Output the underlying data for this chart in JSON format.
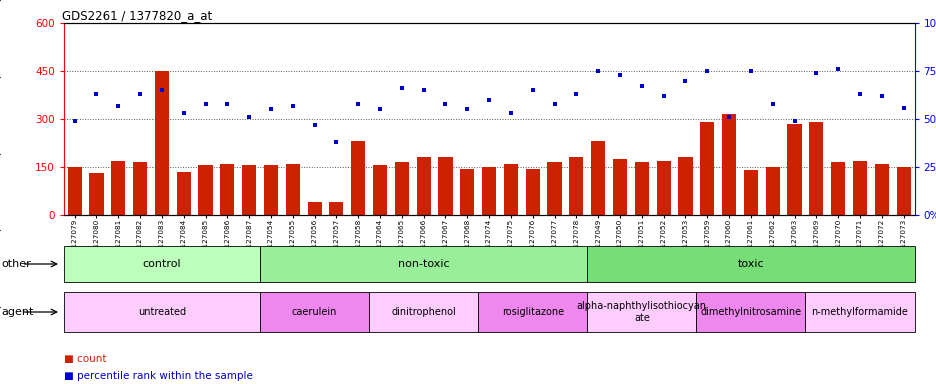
{
  "title": "GDS2261 / 1377820_a_at",
  "samples": [
    "GSM127079",
    "GSM127080",
    "GSM127081",
    "GSM127082",
    "GSM127083",
    "GSM127084",
    "GSM127085",
    "GSM127086",
    "GSM127087",
    "GSM127054",
    "GSM127055",
    "GSM127056",
    "GSM127057",
    "GSM127058",
    "GSM127064",
    "GSM127065",
    "GSM127066",
    "GSM127067",
    "GSM127068",
    "GSM127074",
    "GSM127075",
    "GSM127076",
    "GSM127077",
    "GSM127078",
    "GSM127049",
    "GSM127050",
    "GSM127051",
    "GSM127052",
    "GSM127053",
    "GSM127059",
    "GSM127060",
    "GSM127061",
    "GSM127062",
    "GSM127063",
    "GSM127069",
    "GSM127070",
    "GSM127071",
    "GSM127072",
    "GSM127073"
  ],
  "counts": [
    150,
    130,
    170,
    165,
    450,
    135,
    155,
    160,
    155,
    155,
    160,
    40,
    40,
    230,
    155,
    165,
    180,
    180,
    145,
    150,
    160,
    145,
    165,
    180,
    230,
    175,
    165,
    170,
    180,
    290,
    315,
    140,
    150,
    285,
    290,
    165,
    170,
    160,
    150
  ],
  "percentiles": [
    49,
    63,
    57,
    63,
    65,
    53,
    58,
    58,
    51,
    55,
    57,
    47,
    38,
    58,
    55,
    66,
    65,
    58,
    55,
    60,
    53,
    65,
    58,
    63,
    75,
    73,
    67,
    62,
    70,
    75,
    51,
    75,
    58,
    49,
    74,
    76,
    63,
    62,
    56
  ],
  "bar_color": "#cc2200",
  "dot_color": "#0000cc",
  "ylim_left": [
    0,
    600
  ],
  "ylim_right": [
    0,
    100
  ],
  "yticks_left": [
    0,
    150,
    300,
    450,
    600
  ],
  "yticks_right": [
    0,
    25,
    50,
    75,
    100
  ],
  "ytick_labels_left": [
    "0",
    "150",
    "300",
    "450",
    "600"
  ],
  "ytick_labels_right": [
    "0%",
    "25%",
    "50%",
    "75%",
    "100%"
  ],
  "hlines": [
    150,
    300,
    450
  ],
  "groups_other": [
    {
      "label": "control",
      "start": 0,
      "end": 9,
      "color": "#bbffbb"
    },
    {
      "label": "non-toxic",
      "start": 9,
      "end": 24,
      "color": "#99ee99"
    },
    {
      "label": "toxic",
      "start": 24,
      "end": 39,
      "color": "#77dd77"
    }
  ],
  "groups_agent": [
    {
      "label": "untreated",
      "start": 0,
      "end": 9,
      "color": "#ffccff"
    },
    {
      "label": "caerulein",
      "start": 9,
      "end": 14,
      "color": "#ee88ee"
    },
    {
      "label": "dinitrophenol",
      "start": 14,
      "end": 19,
      "color": "#ffccff"
    },
    {
      "label": "rosiglitazone",
      "start": 19,
      "end": 24,
      "color": "#ee88ee"
    },
    {
      "label": "alpha-naphthylisothiocyan\nate",
      "start": 24,
      "end": 29,
      "color": "#ffccff"
    },
    {
      "label": "dimethylnitrosamine",
      "start": 29,
      "end": 34,
      "color": "#ee88ee"
    },
    {
      "label": "n-methylformamide",
      "start": 34,
      "end": 39,
      "color": "#ffccff"
    }
  ]
}
